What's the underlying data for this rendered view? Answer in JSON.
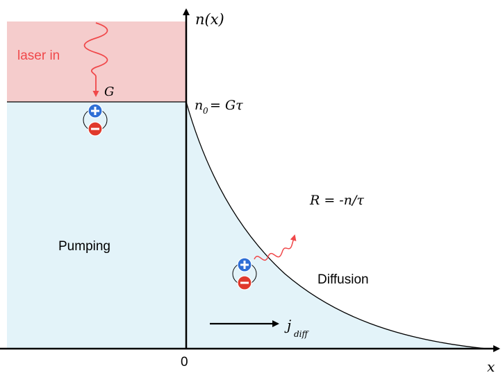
{
  "labels": {
    "laser": "laser in",
    "generation": "G",
    "axis_y": "n(x)",
    "axis_x": "x",
    "origin": "0",
    "n0_sym": "n",
    "n0_sub": "0",
    "n0_rhs": "= Gτ",
    "recomb": "R = -n/τ",
    "pumping": "Pumping",
    "diffusion": "Diffusion",
    "j_sym": "j",
    "j_sub": "diff"
  },
  "colors": {
    "laser_region": "#f5cccc",
    "pumping_region": "#e3f3f9",
    "photon": "#f0484a",
    "hole": "#2f6fd6",
    "electron": "#e0392c",
    "axis": "#000000"
  },
  "icons": {
    "hole": "plus-circle-icon",
    "electron": "minus-circle-icon"
  }
}
